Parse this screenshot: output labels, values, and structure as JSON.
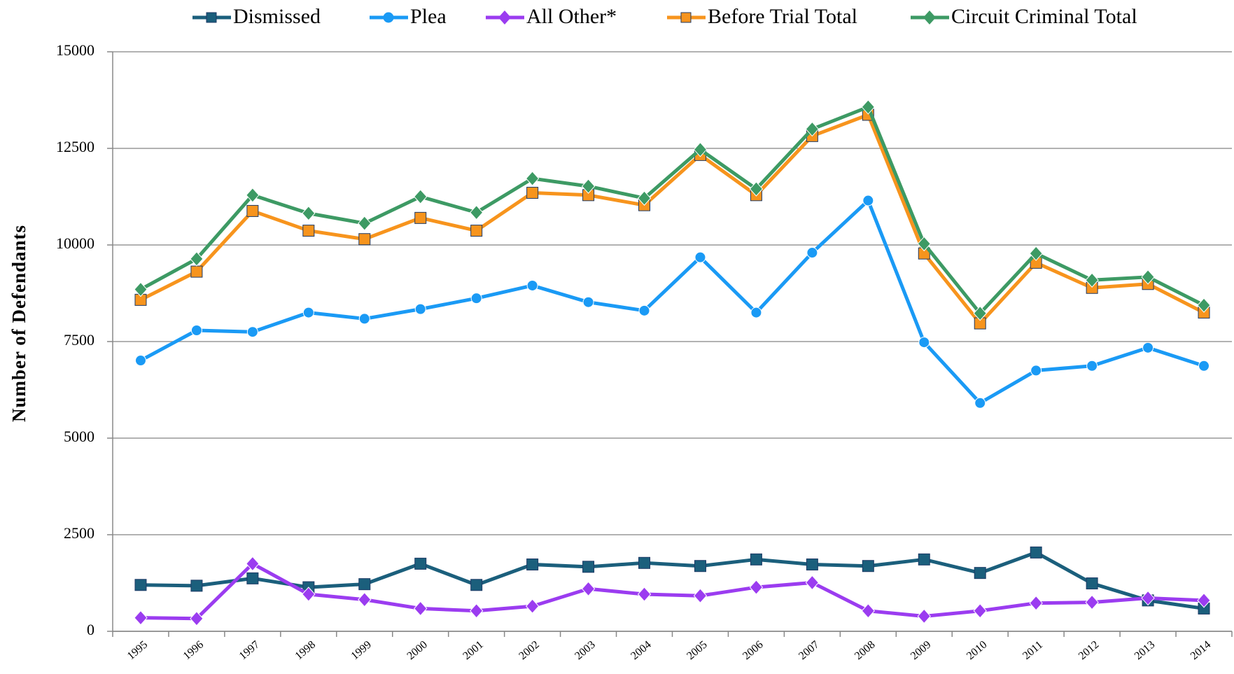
{
  "chart_data": {
    "type": "line",
    "y_axis_label": "Number of Defendants",
    "categories": [
      "1995",
      "1996",
      "1997",
      "1998",
      "1999",
      "2000",
      "2001",
      "2002",
      "2003",
      "2004",
      "2005",
      "2006",
      "2007",
      "2008",
      "2009",
      "2010",
      "2011",
      "2012",
      "2013",
      "2014"
    ],
    "series": [
      {
        "name": "Dismissed",
        "color": "#1b5f7c",
        "marker": "square",
        "values": [
          1200,
          1180,
          1370,
          1140,
          1220,
          1750,
          1200,
          1730,
          1670,
          1770,
          1690,
          1860,
          1730,
          1690,
          1860,
          1510,
          2040,
          1240,
          800,
          590
        ]
      },
      {
        "name": "Plea",
        "color": "#1a9af5",
        "marker": "circle",
        "values": [
          7010,
          7790,
          7750,
          8250,
          8090,
          8340,
          8620,
          8950,
          8520,
          8300,
          9680,
          8250,
          9800,
          11150,
          7480,
          5910,
          6750,
          6870,
          7340,
          6870
        ]
      },
      {
        "name": "All Other*",
        "color": "#9b3cf0",
        "marker": "diamond",
        "values": [
          350,
          330,
          1750,
          960,
          820,
          590,
          530,
          650,
          1100,
          960,
          920,
          1140,
          1260,
          530,
          390,
          530,
          730,
          750,
          860,
          800
        ]
      },
      {
        "name": "Before Trial Total",
        "color": "#f7941d",
        "marker": "square",
        "values": [
          8580,
          9310,
          10880,
          10370,
          10150,
          10700,
          10370,
          11350,
          11290,
          11030,
          12330,
          11290,
          12820,
          13370,
          9780,
          7970,
          9540,
          8890,
          8990,
          8250
        ]
      },
      {
        "name": "Circuit Criminal Total",
        "color": "#3d9a64",
        "marker": "diamond",
        "values": [
          8850,
          9640,
          11290,
          10820,
          10560,
          11250,
          10840,
          11720,
          11520,
          11210,
          12470,
          11450,
          13000,
          13570,
          10030,
          8230,
          9780,
          9090,
          9170,
          8440
        ]
      }
    ],
    "ylim": [
      0,
      15000
    ],
    "yticks": [
      0,
      2500,
      5000,
      7500,
      10000,
      12500,
      15000
    ],
    "grid": true,
    "legend": "top"
  }
}
